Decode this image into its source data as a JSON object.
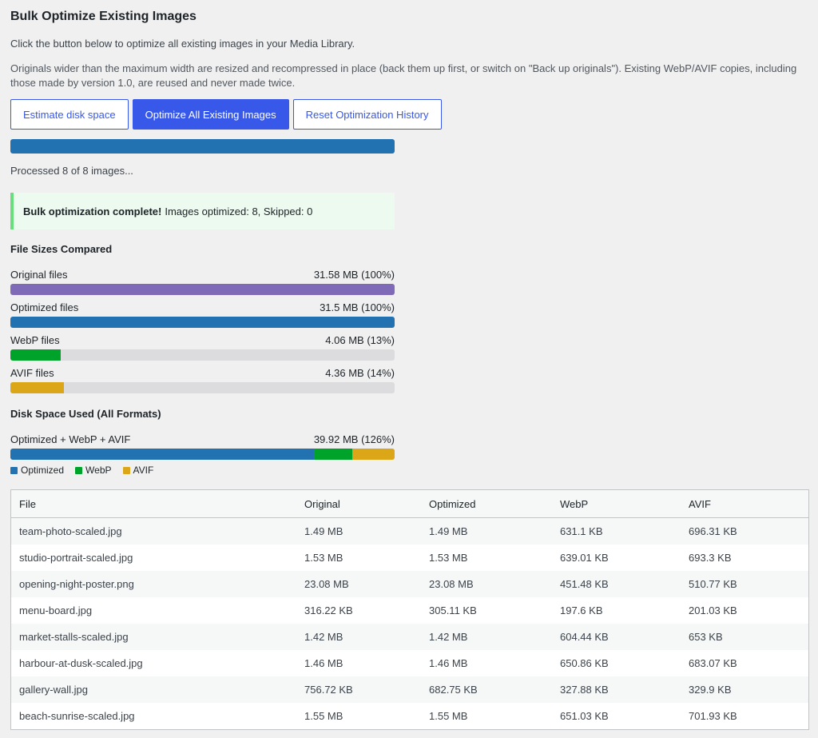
{
  "page": {
    "title": "Bulk Optimize Existing Images",
    "intro": "Click the button below to optimize all existing images in your Media Library.",
    "note": "Originals wider than the maximum width are resized and recompressed in place (back them up first, or switch on \"Back up originals\"). Existing WebP/AVIF copies, including those made by version 1.0, are reused and never made twice."
  },
  "buttons": {
    "estimate": "Estimate disk space",
    "optimize_all": "Optimize All Existing Images",
    "reset": "Reset Optimization History"
  },
  "progress": {
    "percent": 100,
    "status": "Processed 8 of 8 images..."
  },
  "notice": {
    "strong": "Bulk optimization complete!",
    "detail": "Images optimized: 8, Skipped: 0"
  },
  "colors": {
    "original": "#7f6ab8",
    "optimized": "#2271b1",
    "webp": "#00a32a",
    "avif": "#dba617",
    "track": "#dcdcde"
  },
  "file_sizes": {
    "title": "File Sizes Compared",
    "rows": [
      {
        "label": "Original files",
        "value": "31.58 MB (100%)",
        "percent": 100,
        "color_key": "original"
      },
      {
        "label": "Optimized files",
        "value": "31.5 MB (100%)",
        "percent": 100,
        "color_key": "optimized"
      },
      {
        "label": "WebP files",
        "value": "4.06 MB (13%)",
        "percent": 13,
        "color_key": "webp"
      },
      {
        "label": "AVIF files",
        "value": "4.36 MB (14%)",
        "percent": 14,
        "color_key": "avif"
      }
    ]
  },
  "disk_space": {
    "title": "Disk Space Used (All Formats)",
    "label": "Optimized + WebP + AVIF",
    "value": "39.92 MB (126%)",
    "segments": [
      {
        "key": "optimized",
        "mb": 31.5
      },
      {
        "key": "webp",
        "mb": 4.06
      },
      {
        "key": "avif",
        "mb": 4.36
      }
    ],
    "legend": [
      {
        "label": "Optimized",
        "color_key": "optimized"
      },
      {
        "label": "WebP",
        "color_key": "webp"
      },
      {
        "label": "AVIF",
        "color_key": "avif"
      }
    ]
  },
  "table": {
    "headers": [
      "File",
      "Original",
      "Optimized",
      "WebP",
      "AVIF"
    ],
    "rows": [
      [
        "team-photo-scaled.jpg",
        "1.49 MB",
        "1.49 MB",
        "631.1 KB",
        "696.31 KB"
      ],
      [
        "studio-portrait-scaled.jpg",
        "1.53 MB",
        "1.53 MB",
        "639.01 KB",
        "693.3 KB"
      ],
      [
        "opening-night-poster.png",
        "23.08 MB",
        "23.08 MB",
        "451.48 KB",
        "510.77 KB"
      ],
      [
        "menu-board.jpg",
        "316.22 KB",
        "305.11 KB",
        "197.6 KB",
        "201.03 KB"
      ],
      [
        "market-stalls-scaled.jpg",
        "1.42 MB",
        "1.42 MB",
        "604.44 KB",
        "653 KB"
      ],
      [
        "harbour-at-dusk-scaled.jpg",
        "1.46 MB",
        "1.46 MB",
        "650.86 KB",
        "683.07 KB"
      ],
      [
        "gallery-wall.jpg",
        "756.72 KB",
        "682.75 KB",
        "327.88 KB",
        "329.9 KB"
      ],
      [
        "beach-sunrise-scaled.jpg",
        "1.55 MB",
        "1.55 MB",
        "651.03 KB",
        "701.93 KB"
      ]
    ]
  }
}
